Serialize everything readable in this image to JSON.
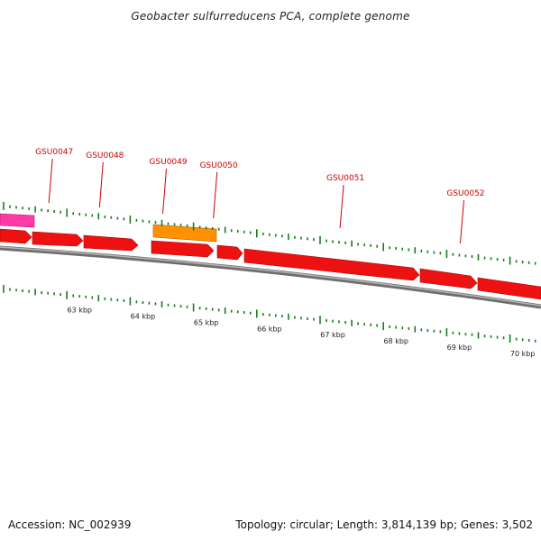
{
  "title": "Geobacter sulfurreducens PCA, complete genome",
  "footer": {
    "accession": "Accession: NC_002939",
    "summary": "Topology: circular; Length: 3,814,139 bp; Genes: 3,502"
  },
  "colors": {
    "gene": "#ee1111",
    "gene_highlight": "#ff8c00",
    "gene_other": "#ff33aa",
    "backbone": "#888888",
    "tick": "#1a7a1a",
    "label": "#cc0000"
  },
  "scale_labels": [
    {
      "text": "63 kbp",
      "kbp": 63
    },
    {
      "text": "64 kbp",
      "kbp": 64
    },
    {
      "text": "65 kbp",
      "kbp": 65
    },
    {
      "text": "66 kbp",
      "kbp": 66
    },
    {
      "text": "67 kbp",
      "kbp": 67
    },
    {
      "text": "68 kbp",
      "kbp": 68
    },
    {
      "text": "69 kbp",
      "kbp": 69
    },
    {
      "text": "70 kbp",
      "kbp": 70
    }
  ],
  "gene_labels": [
    {
      "text": "GSU0047",
      "kbp": 62.8
    },
    {
      "text": "GSU0048",
      "kbp": 63.6
    },
    {
      "text": "GSU0049",
      "kbp": 64.6
    },
    {
      "text": "GSU0050",
      "kbp": 65.4
    },
    {
      "text": "GSU0051",
      "kbp": 67.4
    },
    {
      "text": "GSU0052",
      "kbp": 69.3
    }
  ]
}
